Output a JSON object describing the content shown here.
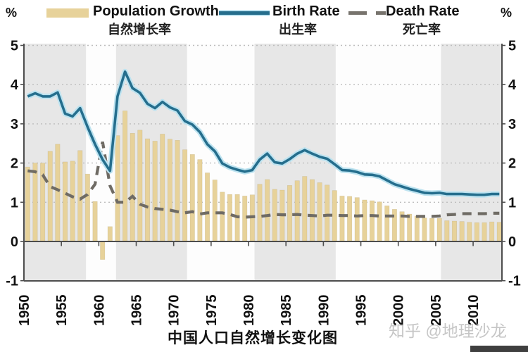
{
  "page": {
    "unit_left": "%",
    "unit_right": "%",
    "bottom_title": "中国人口自然增长变化图",
    "watermark": "知乎 @地理沙龙"
  },
  "legend": {
    "items": [
      {
        "key": "growth",
        "label_en": "Population Growth",
        "label_zh": "自然增长率",
        "color": "#e7d29a",
        "swatch": "bar"
      },
      {
        "key": "birth",
        "label_en": "Birth Rate",
        "label_zh": "出生率",
        "color": "#256e8d",
        "swatch": "line"
      },
      {
        "key": "death",
        "label_en": "Death Rate",
        "label_zh": "死亡率",
        "color": "#77736d",
        "swatch": "dashed"
      }
    ]
  },
  "chart_data": {
    "type": "combo-bar-line",
    "title": "中国人口自然增长变化图",
    "xlabel": "",
    "ylabel_left": "%",
    "ylabel_right": "%",
    "ylim": [
      -1,
      5
    ],
    "y_ticks": [
      5,
      4,
      3,
      2,
      1,
      0,
      -1
    ],
    "grid_values": [
      1,
      2,
      3,
      4,
      5
    ],
    "x_tick_years": [
      1950,
      1955,
      1960,
      1965,
      1970,
      1975,
      1980,
      1985,
      1990,
      1995,
      2000,
      2005,
      2010
    ],
    "x": [
      1950,
      1951,
      1952,
      1953,
      1954,
      1955,
      1956,
      1957,
      1958,
      1959,
      1960,
      1961,
      1962,
      1963,
      1964,
      1965,
      1966,
      1967,
      1968,
      1969,
      1970,
      1971,
      1972,
      1973,
      1974,
      1975,
      1976,
      1977,
      1978,
      1979,
      1980,
      1981,
      1982,
      1983,
      1984,
      1985,
      1986,
      1987,
      1988,
      1989,
      1990,
      1991,
      1992,
      1993,
      1994,
      1995,
      1996,
      1997,
      1998,
      1999,
      2000,
      2001,
      2002,
      2003,
      2004,
      2005,
      2006,
      2007,
      2008,
      2009,
      2010,
      2011,
      2012,
      2013
    ],
    "series": [
      {
        "name": "Population Growth 自然增长率",
        "type": "bar",
        "color": "#e7d29a",
        "values": [
          1.9,
          2.0,
          2.0,
          2.3,
          2.48,
          2.03,
          2.05,
          2.32,
          1.72,
          1.02,
          -0.46,
          0.38,
          2.7,
          3.33,
          2.76,
          2.84,
          2.62,
          2.56,
          2.74,
          2.61,
          2.58,
          2.34,
          2.22,
          2.09,
          1.75,
          1.57,
          1.26,
          1.2,
          1.2,
          1.16,
          1.19,
          1.46,
          1.58,
          1.33,
          1.31,
          1.43,
          1.55,
          1.66,
          1.58,
          1.5,
          1.44,
          1.3,
          1.16,
          1.15,
          1.12,
          1.06,
          1.04,
          1.01,
          0.91,
          0.82,
          0.76,
          0.7,
          0.65,
          0.6,
          0.59,
          0.59,
          0.53,
          0.52,
          0.51,
          0.49,
          0.48,
          0.48,
          0.5,
          0.49
        ]
      },
      {
        "name": "Birth Rate 出生率",
        "type": "line",
        "style": "solid",
        "color": "#256e8d",
        "halo_color": "#bde3f0",
        "values": [
          3.7,
          3.78,
          3.7,
          3.7,
          3.8,
          3.26,
          3.19,
          3.4,
          2.92,
          2.48,
          2.09,
          1.8,
          3.7,
          4.33,
          3.91,
          3.79,
          3.51,
          3.4,
          3.56,
          3.42,
          3.34,
          3.07,
          2.98,
          2.79,
          2.48,
          2.3,
          1.99,
          1.89,
          1.83,
          1.78,
          1.82,
          2.09,
          2.24,
          2.02,
          1.99,
          2.1,
          2.24,
          2.33,
          2.24,
          2.16,
          2.11,
          1.97,
          1.82,
          1.81,
          1.77,
          1.71,
          1.7,
          1.66,
          1.56,
          1.46,
          1.4,
          1.34,
          1.29,
          1.24,
          1.23,
          1.24,
          1.21,
          1.21,
          1.21,
          1.2,
          1.19,
          1.19,
          1.21,
          1.21
        ]
      },
      {
        "name": "Death Rate 死亡率",
        "type": "line",
        "style": "dashed",
        "color": "#6f6b64",
        "values": [
          1.8,
          1.78,
          1.7,
          1.4,
          1.32,
          1.23,
          1.14,
          1.08,
          1.2,
          1.46,
          2.54,
          1.42,
          1.0,
          1.0,
          1.15,
          0.95,
          0.88,
          0.84,
          0.82,
          0.8,
          0.76,
          0.73,
          0.76,
          0.7,
          0.73,
          0.73,
          0.73,
          0.69,
          0.63,
          0.62,
          0.63,
          0.64,
          0.66,
          0.69,
          0.68,
          0.68,
          0.69,
          0.67,
          0.66,
          0.65,
          0.67,
          0.67,
          0.66,
          0.66,
          0.65,
          0.66,
          0.66,
          0.65,
          0.65,
          0.65,
          0.65,
          0.64,
          0.64,
          0.64,
          0.64,
          0.65,
          0.68,
          0.69,
          0.71,
          0.71,
          0.71,
          0.71,
          0.72,
          0.72
        ]
      }
    ],
    "bands": [
      {
        "from": 1950.0,
        "to": 1958.3,
        "color": "#e7e7e7"
      },
      {
        "from": 1958.3,
        "to": 1962.3,
        "color": "#fdfdfd"
      },
      {
        "from": 1962.3,
        "to": 1971.8,
        "color": "#e7e7e7"
      },
      {
        "from": 1971.8,
        "to": 1980.8,
        "color": "#fdfdfd"
      },
      {
        "from": 1980.8,
        "to": 1991.65,
        "color": "#e7e7e7"
      },
      {
        "from": 1991.65,
        "to": 2005.7,
        "color": "#fdfdfd"
      },
      {
        "from": 2005.7,
        "to": 2013.85,
        "color": "#e7e7e7"
      }
    ],
    "legend_position": "top",
    "grid": "horizontal-dotted"
  }
}
